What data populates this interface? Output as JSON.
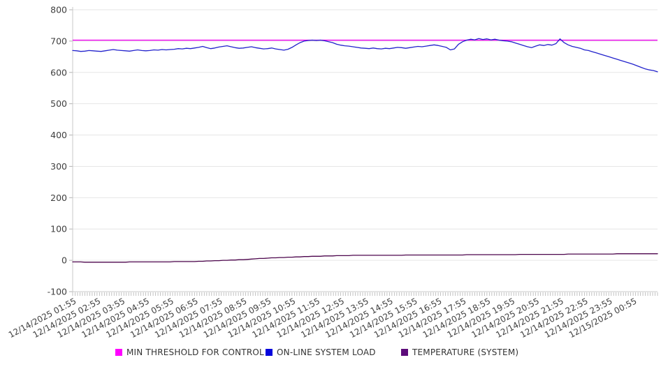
{
  "colors": {
    "grid": "#e6e6e6",
    "axis": "#c8c8c8",
    "minor_tick": "#b3b3b3",
    "tick_text": "#404040",
    "legend_text": "#333333"
  },
  "legend": {
    "items": [
      {
        "label": "MIN THRESHOLD FOR CONTROL",
        "swatch": "#ff00ff"
      },
      {
        "label": "ON-LINE SYSTEM LOAD",
        "swatch": "#0505dd"
      },
      {
        "label": "TEMPERATURE (SYSTEM)",
        "swatch": "#5c0b7a"
      }
    ]
  },
  "chart_data": {
    "type": "line",
    "title": "",
    "xlabel": "",
    "ylabel": "",
    "ylim": [
      -100,
      800
    ],
    "grid": "horizontal",
    "legend_position": "bottom",
    "y_ticks": [
      800,
      700,
      600,
      500,
      400,
      300,
      200,
      100,
      0,
      -100
    ],
    "x_labels": [
      "12/14/2025 01:55",
      "12/14/2025 02:55",
      "12/14/2025 03:55",
      "12/14/2025 04:55",
      "12/14/2025 05:55",
      "12/14/2025 06:55",
      "12/14/2025 07:55",
      "12/14/2025 08:55",
      "12/14/2025 09:55",
      "12/14/2025 10:55",
      "12/14/2025 11:55",
      "12/14/2025 12:55",
      "12/14/2025 13:55",
      "12/14/2025 14:55",
      "12/14/2025 15:55",
      "12/14/2025 16:55",
      "12/14/2025 17:55",
      "12/14/2025 18:55",
      "12/14/2025 19:55",
      "12/14/2025 20:55",
      "12/14/2025 21:55",
      "12/14/2025 22:55",
      "12/14/2025 23:55",
      "12/15/2025 00:55"
    ],
    "points_per_hour": 6,
    "series": [
      {
        "name": "MIN THRESHOLD FOR CONTROL",
        "color": "#ee00ee",
        "kind": "constant",
        "value": 703
      },
      {
        "name": "ON-LINE SYSTEM LOAD",
        "color": "#2222cc",
        "kind": "points",
        "values": [
          670,
          669,
          667,
          668,
          670,
          669,
          668,
          667,
          669,
          671,
          673,
          671,
          670,
          669,
          668,
          670,
          672,
          670,
          669,
          670,
          672,
          671,
          673,
          672,
          673,
          674,
          676,
          675,
          677,
          676,
          678,
          680,
          683,
          679,
          676,
          678,
          681,
          683,
          685,
          682,
          679,
          677,
          678,
          680,
          682,
          679,
          677,
          675,
          676,
          678,
          675,
          673,
          671,
          674,
          680,
          688,
          695,
          700,
          702,
          703,
          702,
          703,
          701,
          698,
          695,
          690,
          687,
          685,
          684,
          682,
          680,
          678,
          677,
          676,
          678,
          676,
          675,
          677,
          676,
          678,
          680,
          679,
          677,
          679,
          681,
          683,
          682,
          684,
          686,
          688,
          686,
          683,
          680,
          672,
          675,
          690,
          698,
          703,
          706,
          704,
          708,
          705,
          707,
          704,
          706,
          703,
          701,
          700,
          698,
          694,
          690,
          686,
          682,
          679,
          684,
          688,
          686,
          689,
          687,
          692,
          707,
          695,
          688,
          683,
          680,
          677,
          672,
          670,
          666,
          662,
          658,
          654,
          650,
          646,
          642,
          638,
          634,
          630,
          626,
          621,
          616,
          611,
          608,
          606,
          602
        ]
      },
      {
        "name": "TEMPERATURE (SYSTEM)",
        "color": "#4c054c",
        "kind": "points",
        "values": [
          -5,
          -5,
          -5,
          -6,
          -6,
          -6,
          -6,
          -6,
          -6,
          -6,
          -6,
          -6,
          -6,
          -6,
          -5,
          -5,
          -5,
          -5,
          -5,
          -5,
          -5,
          -5,
          -5,
          -5,
          -5,
          -4,
          -4,
          -4,
          -4,
          -4,
          -4,
          -3,
          -3,
          -2,
          -2,
          -1,
          -1,
          0,
          0,
          1,
          1,
          2,
          2,
          3,
          4,
          5,
          6,
          6,
          7,
          8,
          8,
          9,
          9,
          10,
          10,
          11,
          11,
          12,
          12,
          13,
          13,
          13,
          14,
          14,
          14,
          15,
          15,
          15,
          15,
          16,
          16,
          16,
          16,
          16,
          16,
          16,
          16,
          16,
          16,
          16,
          16,
          16,
          17,
          17,
          17,
          17,
          17,
          17,
          17,
          17,
          17,
          17,
          17,
          17,
          17,
          17,
          17,
          18,
          18,
          18,
          18,
          18,
          18,
          18,
          18,
          18,
          18,
          18,
          18,
          18,
          19,
          19,
          19,
          19,
          19,
          19,
          19,
          19,
          19,
          19,
          19,
          19,
          20,
          20,
          20,
          20,
          20,
          20,
          20,
          20,
          20,
          20,
          20,
          20,
          21,
          21,
          21,
          21,
          21,
          21,
          21,
          21,
          21,
          21,
          21
        ]
      }
    ]
  }
}
